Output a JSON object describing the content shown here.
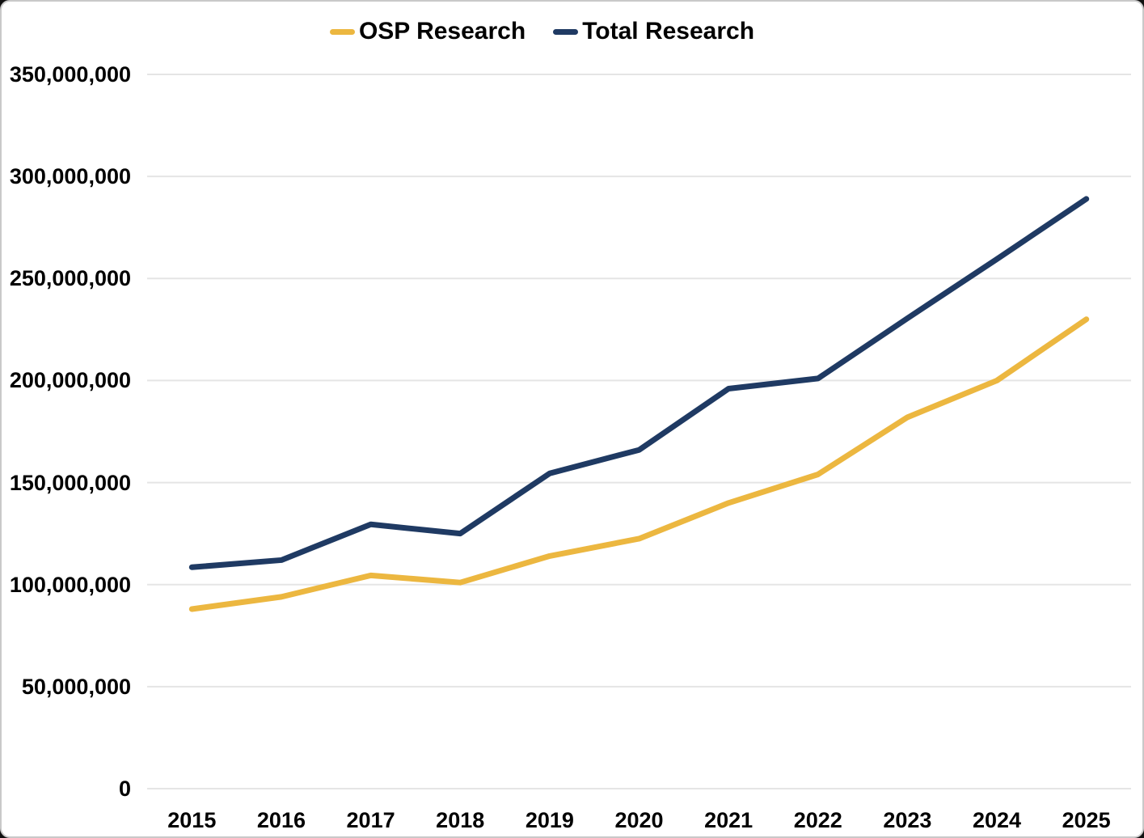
{
  "chart_data": {
    "type": "line",
    "title": "",
    "xlabel": "",
    "ylabel": "",
    "grid": true,
    "legend_position": "top-center",
    "categories": [
      "2015",
      "2016",
      "2017",
      "2018",
      "2019",
      "2020",
      "2021",
      "2022",
      "2023",
      "2024",
      "2025"
    ],
    "series": [
      {
        "name": "OSP Research",
        "color": "#ECB740",
        "values": [
          88000000,
          94000000,
          104500000,
          101000000,
          114000000,
          122500000,
          140000000,
          154000000,
          182000000,
          200000000,
          230000000
        ]
      },
      {
        "name": "Total Research",
        "color": "#1F3A63",
        "values": [
          108500000,
          112000000,
          129500000,
          125000000,
          154500000,
          166000000,
          196000000,
          201000000,
          230500000,
          259500000,
          289000000
        ]
      }
    ],
    "ylim": [
      0,
      350000000
    ],
    "ytick_step": 50000000,
    "y_ticks": [
      {
        "value": 0,
        "label": "0"
      },
      {
        "value": 50000000,
        "label": "50,000,000"
      },
      {
        "value": 100000000,
        "label": "100,000,000"
      },
      {
        "value": 150000000,
        "label": "150,000,000"
      },
      {
        "value": 200000000,
        "label": "200,000,000"
      },
      {
        "value": 250000000,
        "label": "250,000,000"
      },
      {
        "value": 300000000,
        "label": "300,000,000"
      },
      {
        "value": 350000000,
        "label": "350,000,000"
      }
    ]
  }
}
